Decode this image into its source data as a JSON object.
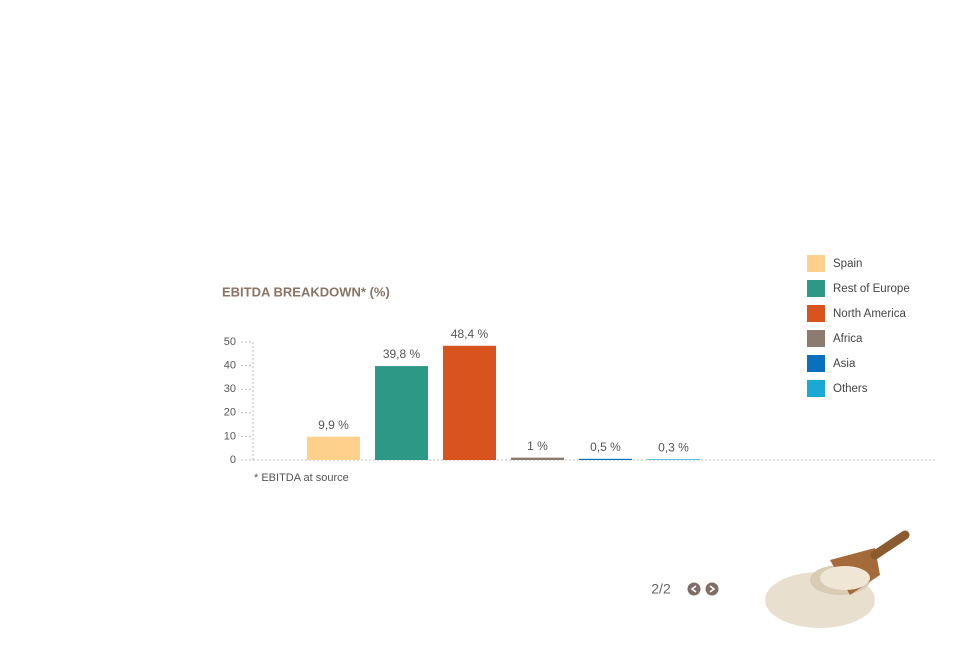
{
  "chart_data": {
    "type": "bar",
    "title": "EBITDA BREAKDOWN* (%)",
    "categories": [
      "Spain",
      "Rest of Europe",
      "North America",
      "Africa",
      "Asia",
      "Others"
    ],
    "values": [
      9.9,
      39.8,
      48.4,
      1,
      0.5,
      0.3
    ],
    "value_labels": [
      "9,9 %",
      "39,8 %",
      "48,4 %",
      "1 %",
      "0,5 %",
      "0,3 %"
    ],
    "colors": [
      "#fdd08b",
      "#2e9887",
      "#d9531e",
      "#8b7b70",
      "#0a70be",
      "#1aa8d4"
    ],
    "ylim": [
      0,
      50
    ],
    "yticks": [
      0,
      10,
      20,
      30,
      40,
      50
    ],
    "footnote": "* EBITDA at source"
  },
  "pagination": "2/2"
}
